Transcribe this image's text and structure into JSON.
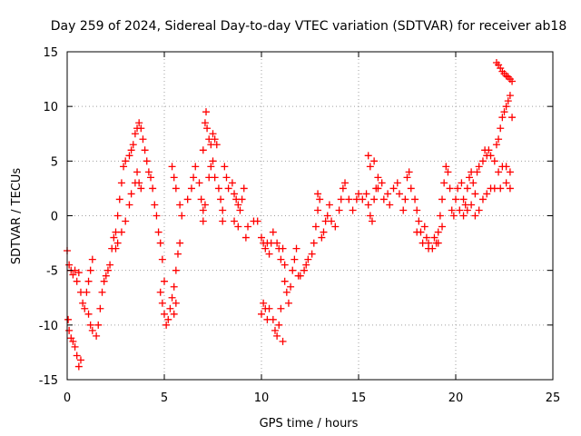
{
  "chart_data": {
    "type": "scatter",
    "title": "Day 259 of 2024, Sidereal Day-to-day VTEC variation (SDTVAR) for receiver ab18",
    "xlabel": "GPS time / hours",
    "ylabel": "SDTVAR / TECUs",
    "xlim": [
      0,
      25
    ],
    "ylim": [
      -15,
      15
    ],
    "xticks": [
      0,
      5,
      10,
      15,
      20,
      25
    ],
    "yticks": [
      -15,
      -10,
      -5,
      0,
      5,
      10,
      15
    ],
    "xtick_labels": [
      "0",
      "5",
      "10",
      "15",
      "20",
      "25"
    ],
    "ytick_labels": [
      "-15",
      "-10",
      "-5",
      "0",
      "5",
      "10",
      "15"
    ],
    "grid": true,
    "marker": "+",
    "color": "#ff0000",
    "series": [
      {
        "name": "SDTVAR",
        "points": [
          [
            0.0,
            -3.2
          ],
          [
            0.1,
            -4.5
          ],
          [
            0.2,
            -5.0
          ],
          [
            0.3,
            -5.4
          ],
          [
            0.4,
            -5.0
          ],
          [
            0.5,
            -6.0
          ],
          [
            0.6,
            -5.2
          ],
          [
            0.7,
            -7.0
          ],
          [
            0.8,
            -8.0
          ],
          [
            0.9,
            -8.5
          ],
          [
            0.05,
            -9.5
          ],
          [
            0.1,
            -10.5
          ],
          [
            0.2,
            -11.2
          ],
          [
            0.3,
            -11.5
          ],
          [
            0.4,
            -12.0
          ],
          [
            0.5,
            -12.8
          ],
          [
            0.6,
            -13.8
          ],
          [
            0.7,
            -13.2
          ],
          [
            1.0,
            -7.0
          ],
          [
            1.1,
            -6.0
          ],
          [
            1.2,
            -5.0
          ],
          [
            1.3,
            -4.0
          ],
          [
            1.1,
            -9.0
          ],
          [
            1.2,
            -10.0
          ],
          [
            1.3,
            -10.5
          ],
          [
            1.5,
            -11.0
          ],
          [
            1.6,
            -10.0
          ],
          [
            1.7,
            -8.5
          ],
          [
            1.8,
            -7.0
          ],
          [
            1.9,
            -6.0
          ],
          [
            2.0,
            -5.5
          ],
          [
            2.1,
            -5.0
          ],
          [
            2.2,
            -4.5
          ],
          [
            2.3,
            -3.0
          ],
          [
            2.4,
            -2.0
          ],
          [
            2.5,
            -1.5
          ],
          [
            2.6,
            0.0
          ],
          [
            2.7,
            1.5
          ],
          [
            2.8,
            3.0
          ],
          [
            2.9,
            4.5
          ],
          [
            3.0,
            5.0
          ],
          [
            2.5,
            -3.0
          ],
          [
            2.6,
            -2.5
          ],
          [
            2.8,
            -1.5
          ],
          [
            3.0,
            -0.5
          ],
          [
            3.2,
            1.0
          ],
          [
            3.3,
            2.0
          ],
          [
            3.5,
            3.0
          ],
          [
            3.6,
            4.0
          ],
          [
            3.7,
            3.0
          ],
          [
            3.8,
            2.5
          ],
          [
            3.2,
            5.5
          ],
          [
            3.3,
            6.0
          ],
          [
            3.4,
            6.5
          ],
          [
            3.5,
            7.5
          ],
          [
            3.6,
            8.0
          ],
          [
            3.7,
            8.5
          ],
          [
            3.8,
            8.0
          ],
          [
            3.9,
            7.0
          ],
          [
            4.0,
            6.0
          ],
          [
            4.1,
            5.0
          ],
          [
            4.2,
            4.0
          ],
          [
            4.3,
            3.5
          ],
          [
            4.4,
            2.5
          ],
          [
            4.5,
            1.0
          ],
          [
            4.6,
            0.0
          ],
          [
            4.7,
            -1.5
          ],
          [
            4.8,
            -2.5
          ],
          [
            4.9,
            -4.0
          ],
          [
            5.0,
            -6.0
          ],
          [
            4.8,
            -7.0
          ],
          [
            4.9,
            -8.0
          ],
          [
            5.0,
            -9.0
          ],
          [
            5.1,
            -10.0
          ],
          [
            5.2,
            -9.5
          ],
          [
            5.3,
            -8.5
          ],
          [
            5.4,
            -7.5
          ],
          [
            5.5,
            -6.5
          ],
          [
            5.6,
            -5.0
          ],
          [
            5.7,
            -3.5
          ],
          [
            5.8,
            -2.5
          ],
          [
            5.5,
            -9.0
          ],
          [
            5.6,
            -8.0
          ],
          [
            5.4,
            4.5
          ],
          [
            5.5,
            3.5
          ],
          [
            5.6,
            2.5
          ],
          [
            5.8,
            1.0
          ],
          [
            5.9,
            0.0
          ],
          [
            6.2,
            1.5
          ],
          [
            6.4,
            2.5
          ],
          [
            6.5,
            3.5
          ],
          [
            6.6,
            4.5
          ],
          [
            6.8,
            3.0
          ],
          [
            6.9,
            1.5
          ],
          [
            7.0,
            0.5
          ],
          [
            7.0,
            -0.5
          ],
          [
            7.1,
            1.0
          ],
          [
            7.0,
            6.0
          ],
          [
            7.1,
            8.5
          ],
          [
            7.15,
            9.5
          ],
          [
            7.2,
            8.0
          ],
          [
            7.3,
            7.0
          ],
          [
            7.4,
            6.5
          ],
          [
            7.5,
            7.5
          ],
          [
            7.6,
            7.0
          ],
          [
            7.7,
            6.5
          ],
          [
            7.3,
            3.5
          ],
          [
            7.4,
            4.5
          ],
          [
            7.5,
            5.0
          ],
          [
            7.6,
            3.5
          ],
          [
            7.8,
            2.5
          ],
          [
            7.9,
            1.5
          ],
          [
            8.0,
            0.5
          ],
          [
            8.0,
            -0.5
          ],
          [
            8.1,
            4.5
          ],
          [
            8.2,
            3.5
          ],
          [
            8.3,
            2.5
          ],
          [
            8.5,
            3.0
          ],
          [
            8.6,
            2.0
          ],
          [
            8.7,
            1.5
          ],
          [
            8.8,
            1.0
          ],
          [
            8.9,
            0.5
          ],
          [
            9.0,
            1.5
          ],
          [
            9.1,
            2.5
          ],
          [
            8.6,
            -0.5
          ],
          [
            8.8,
            -1.0
          ],
          [
            9.2,
            -2.0
          ],
          [
            9.3,
            -1.0
          ],
          [
            9.6,
            -0.5
          ],
          [
            9.8,
            -0.5
          ],
          [
            10.0,
            -2.0
          ],
          [
            10.1,
            -2.5
          ],
          [
            10.2,
            -3.0
          ],
          [
            10.3,
            -2.5
          ],
          [
            10.4,
            -3.5
          ],
          [
            10.5,
            -2.5
          ],
          [
            10.6,
            -1.5
          ],
          [
            10.8,
            -2.5
          ],
          [
            10.9,
            -3.0
          ],
          [
            11.0,
            -4.0
          ],
          [
            11.1,
            -3.0
          ],
          [
            11.2,
            -4.5
          ],
          [
            10.0,
            -9.0
          ],
          [
            10.1,
            -8.0
          ],
          [
            10.2,
            -8.5
          ],
          [
            10.3,
            -9.5
          ],
          [
            10.4,
            -8.5
          ],
          [
            10.6,
            -9.5
          ],
          [
            10.7,
            -10.5
          ],
          [
            10.8,
            -11.0
          ],
          [
            10.9,
            -10.0
          ],
          [
            11.0,
            -8.5
          ],
          [
            11.1,
            -11.5
          ],
          [
            11.2,
            -6.0
          ],
          [
            11.3,
            -7.0
          ],
          [
            11.4,
            -8.0
          ],
          [
            11.5,
            -6.5
          ],
          [
            11.6,
            -5.0
          ],
          [
            11.7,
            -4.0
          ],
          [
            11.8,
            -3.0
          ],
          [
            11.9,
            -5.5
          ],
          [
            12.0,
            -5.5
          ],
          [
            12.2,
            -5.0
          ],
          [
            12.3,
            -4.5
          ],
          [
            12.4,
            -4.0
          ],
          [
            12.6,
            -3.5
          ],
          [
            12.7,
            -2.5
          ],
          [
            12.8,
            -1.0
          ],
          [
            12.9,
            0.5
          ],
          [
            12.9,
            2.0
          ],
          [
            13.0,
            1.5
          ],
          [
            13.1,
            -2.0
          ],
          [
            13.2,
            -1.5
          ],
          [
            13.3,
            -0.5
          ],
          [
            13.4,
            0.0
          ],
          [
            13.6,
            -0.5
          ],
          [
            13.8,
            -1.0
          ],
          [
            13.5,
            1.0
          ],
          [
            14.0,
            0.5
          ],
          [
            14.1,
            1.5
          ],
          [
            14.2,
            2.5
          ],
          [
            14.3,
            3.0
          ],
          [
            14.5,
            1.5
          ],
          [
            14.7,
            0.5
          ],
          [
            14.9,
            1.5
          ],
          [
            15.0,
            2.0
          ],
          [
            15.2,
            1.5
          ],
          [
            15.4,
            2.0
          ],
          [
            15.5,
            1.0
          ],
          [
            15.6,
            0.0
          ],
          [
            15.7,
            -0.5
          ],
          [
            15.8,
            1.5
          ],
          [
            15.9,
            2.5
          ],
          [
            16.0,
            3.5
          ],
          [
            15.6,
            4.5
          ],
          [
            15.5,
            5.5
          ],
          [
            15.8,
            5.0
          ],
          [
            16.0,
            2.5
          ],
          [
            16.2,
            3.0
          ],
          [
            16.3,
            1.5
          ],
          [
            16.5,
            2.0
          ],
          [
            16.6,
            1.0
          ],
          [
            16.8,
            2.5
          ],
          [
            17.0,
            3.0
          ],
          [
            17.1,
            2.0
          ],
          [
            17.3,
            0.5
          ],
          [
            17.4,
            1.5
          ],
          [
            17.5,
            3.5
          ],
          [
            17.6,
            4.0
          ],
          [
            17.7,
            2.5
          ],
          [
            17.9,
            1.5
          ],
          [
            18.0,
            0.5
          ],
          [
            18.1,
            -0.5
          ],
          [
            18.2,
            -1.5
          ],
          [
            18.4,
            -1.0
          ],
          [
            18.5,
            -2.0
          ],
          [
            18.6,
            -2.5
          ],
          [
            18.8,
            -3.0
          ],
          [
            19.0,
            -2.5
          ],
          [
            19.1,
            -1.5
          ],
          [
            19.2,
            0.0
          ],
          [
            19.3,
            1.5
          ],
          [
            19.4,
            3.0
          ],
          [
            19.5,
            4.5
          ],
          [
            19.6,
            4.0
          ],
          [
            19.7,
            2.5
          ],
          [
            19.8,
            0.5
          ],
          [
            19.9,
            0.0
          ],
          [
            18.0,
            -1.5
          ],
          [
            18.3,
            -2.5
          ],
          [
            18.6,
            -3.0
          ],
          [
            18.9,
            -2.0
          ],
          [
            19.1,
            -2.5
          ],
          [
            19.3,
            -1.0
          ],
          [
            20.0,
            1.5
          ],
          [
            20.1,
            2.5
          ],
          [
            20.3,
            3.0
          ],
          [
            20.4,
            1.5
          ],
          [
            20.5,
            1.0
          ],
          [
            20.6,
            2.5
          ],
          [
            20.7,
            3.5
          ],
          [
            20.8,
            4.0
          ],
          [
            20.9,
            3.0
          ],
          [
            21.0,
            2.0
          ],
          [
            20.2,
            0.5
          ],
          [
            20.4,
            0.0
          ],
          [
            20.6,
            0.5
          ],
          [
            20.8,
            1.0
          ],
          [
            21.0,
            0.0
          ],
          [
            21.2,
            0.5
          ],
          [
            21.4,
            1.5
          ],
          [
            21.6,
            2.0
          ],
          [
            21.8,
            2.5
          ],
          [
            22.0,
            2.5
          ],
          [
            21.1,
            4.0
          ],
          [
            21.2,
            4.5
          ],
          [
            21.4,
            5.0
          ],
          [
            21.5,
            6.0
          ],
          [
            21.6,
            5.5
          ],
          [
            21.7,
            6.0
          ],
          [
            21.8,
            5.5
          ],
          [
            22.0,
            5.0
          ],
          [
            22.1,
            6.5
          ],
          [
            22.2,
            7.0
          ],
          [
            22.2,
            4.0
          ],
          [
            22.4,
            4.5
          ],
          [
            22.6,
            4.5
          ],
          [
            22.8,
            4.0
          ],
          [
            22.3,
            2.5
          ],
          [
            22.6,
            3.0
          ],
          [
            22.8,
            2.5
          ],
          [
            22.3,
            8.0
          ],
          [
            22.4,
            9.0
          ],
          [
            22.5,
            9.5
          ],
          [
            22.6,
            10.0
          ],
          [
            22.7,
            10.5
          ],
          [
            22.8,
            11.0
          ],
          [
            22.9,
            9.0
          ],
          [
            22.1,
            14.0
          ],
          [
            22.2,
            13.8
          ],
          [
            22.3,
            13.5
          ],
          [
            22.4,
            13.2
          ],
          [
            22.5,
            13.0
          ],
          [
            22.6,
            12.8
          ],
          [
            22.7,
            12.7
          ],
          [
            22.8,
            12.5
          ],
          [
            22.9,
            12.3
          ]
        ]
      }
    ]
  }
}
